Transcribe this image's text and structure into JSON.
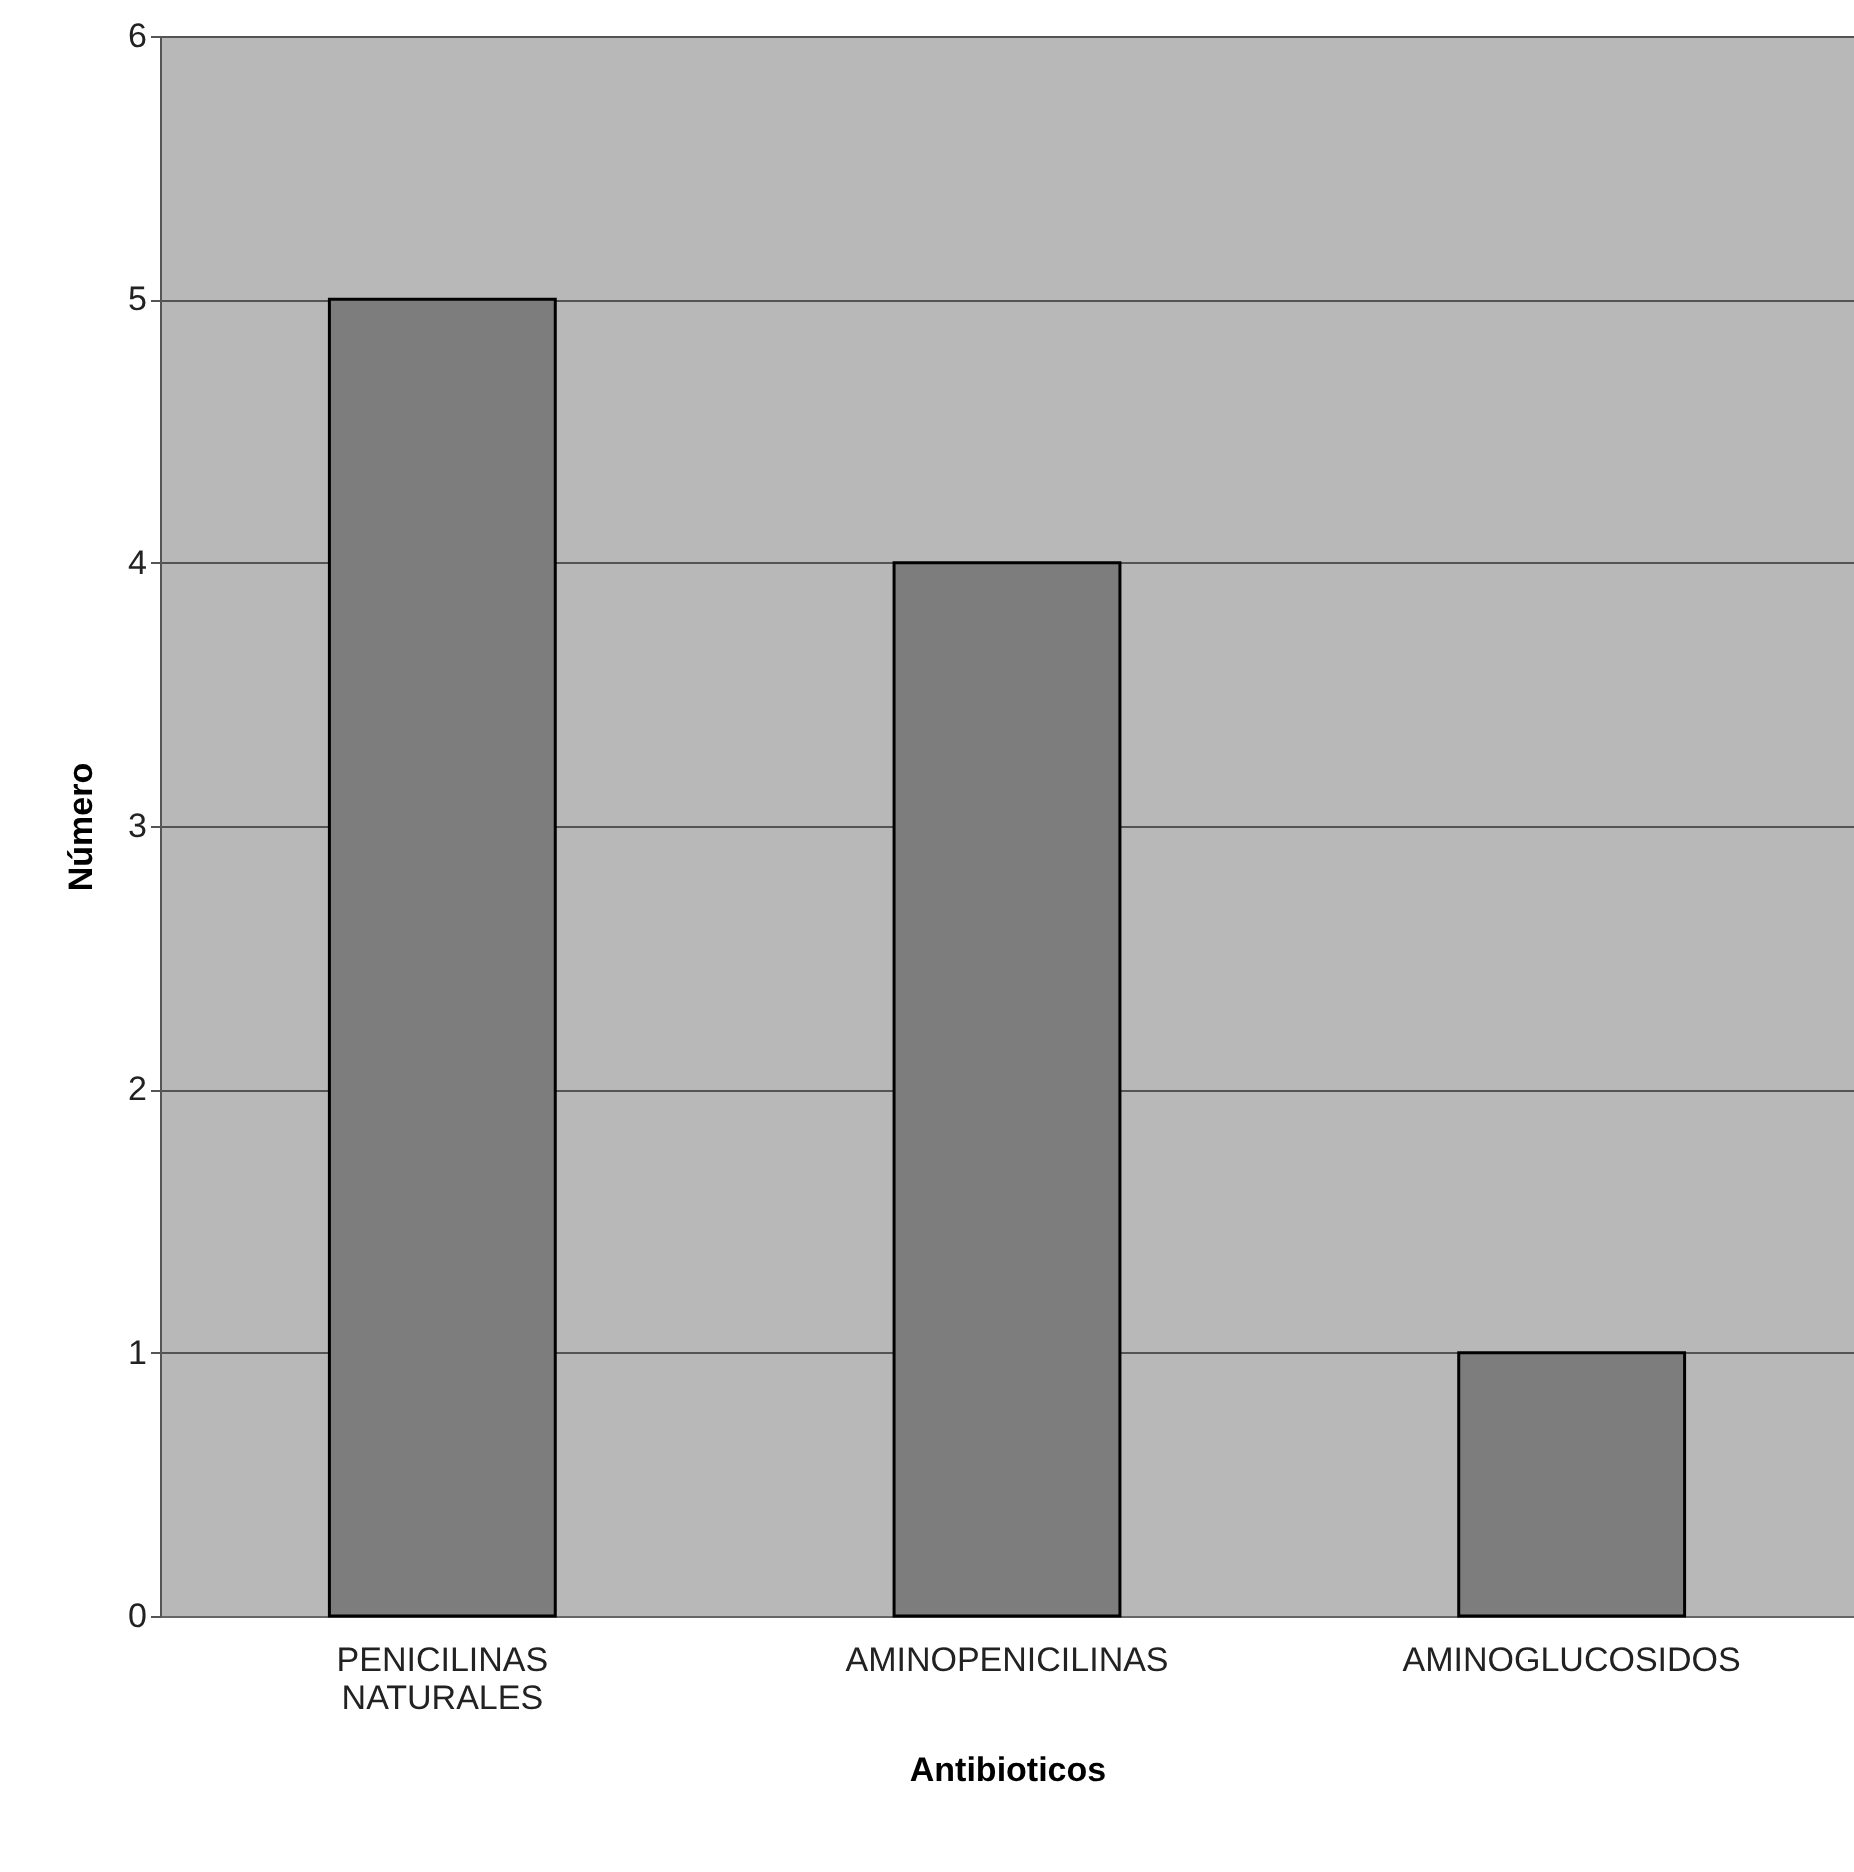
{
  "chart_data": {
    "type": "bar",
    "xlabel": "Antibioticos",
    "ylabel": "Número",
    "categories": [
      "PENICILINAS NATURALES",
      "AMINOPENICILINAS",
      "AMINOGLUCOSIDOS"
    ],
    "values": [
      5,
      4,
      1
    ],
    "color": "#7d7d7d",
    "ylim": [
      0,
      6
    ],
    "yticks": [
      0,
      1,
      2,
      3,
      4,
      5,
      6
    ],
    "grid": "y"
  }
}
